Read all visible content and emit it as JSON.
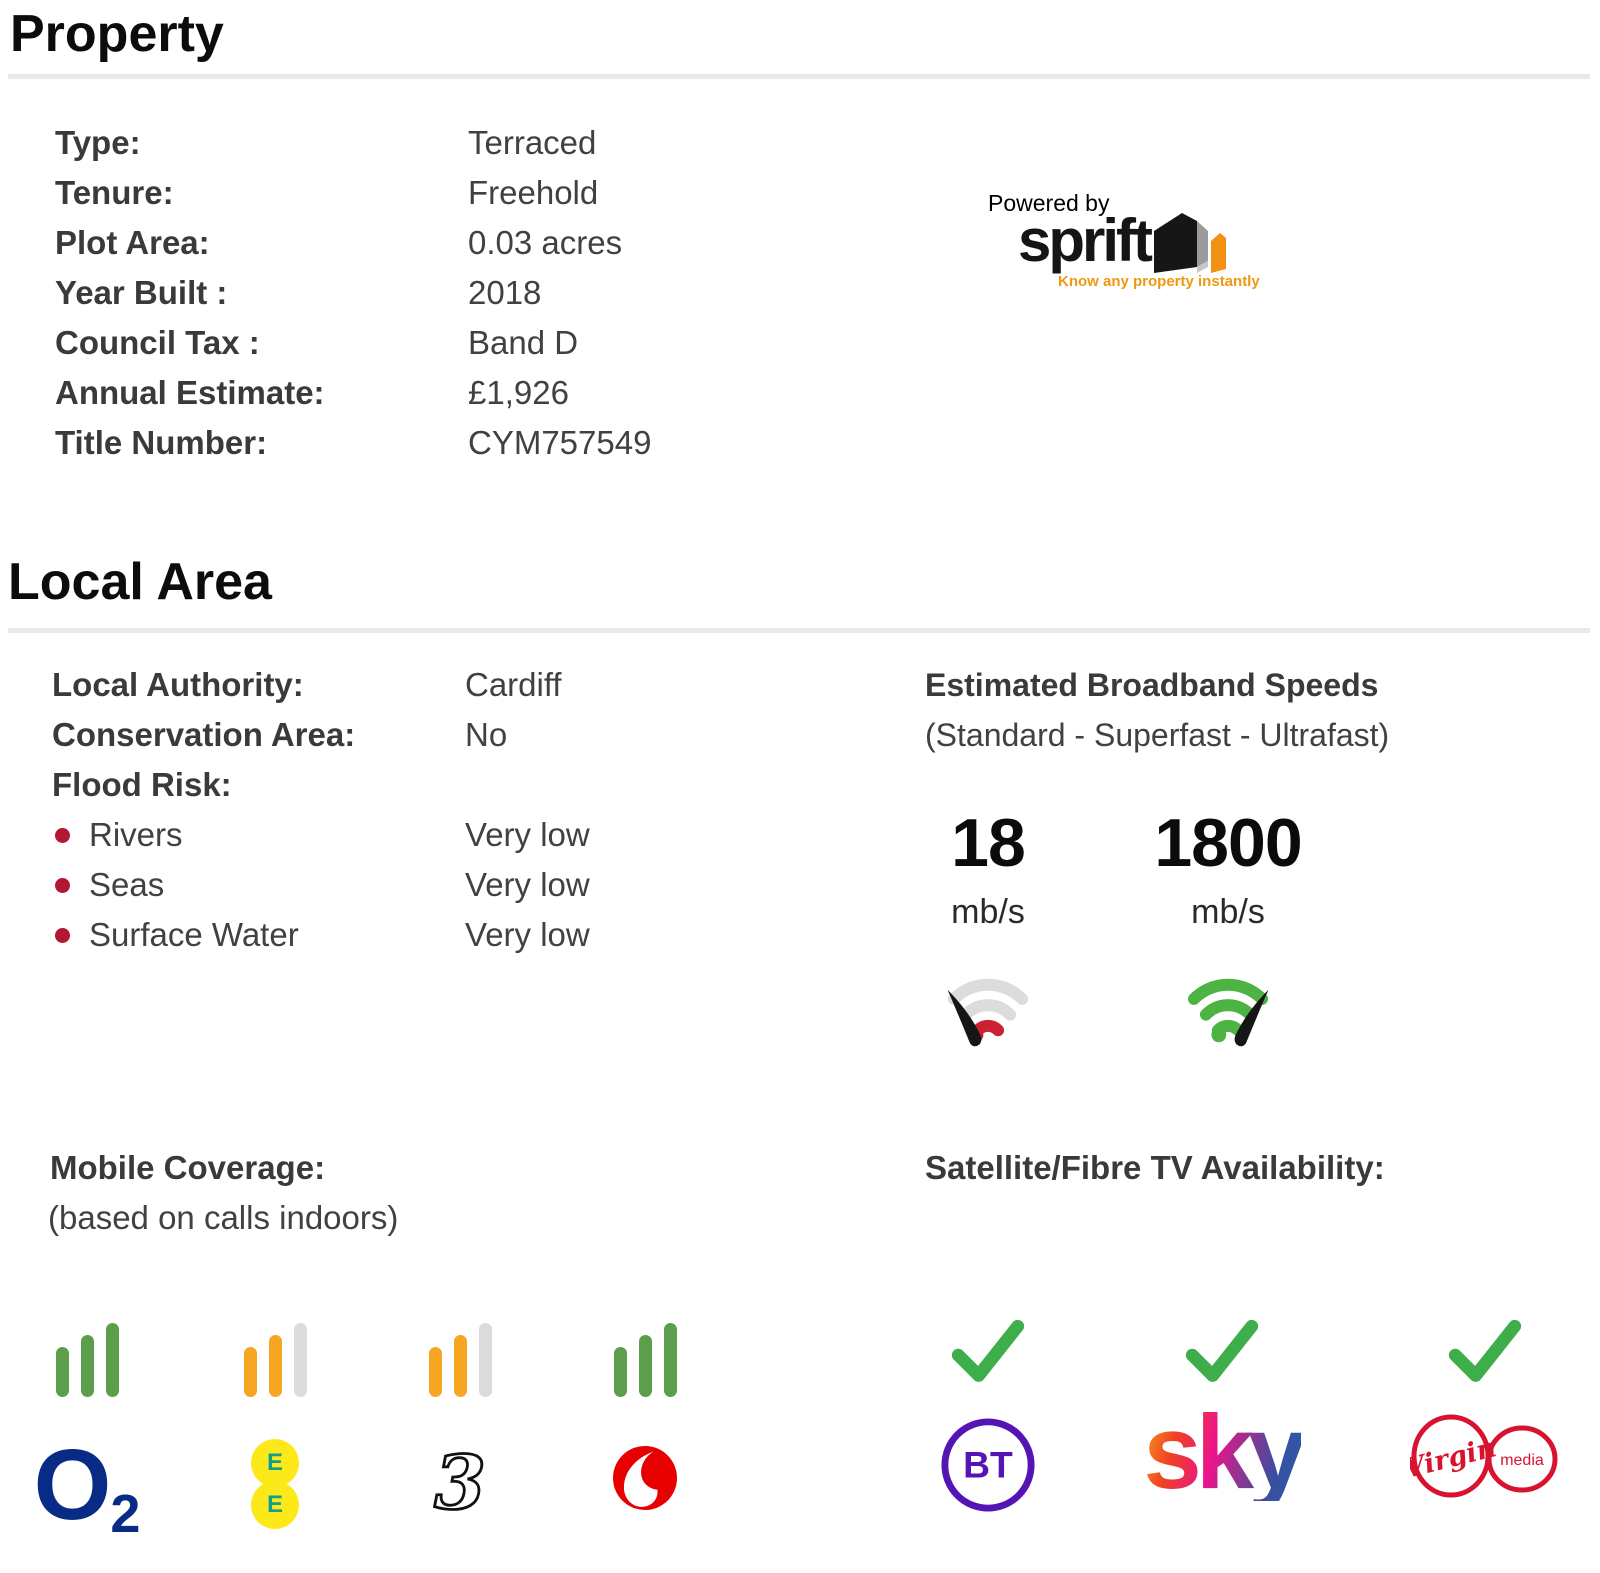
{
  "property_section": {
    "title": "Property",
    "rows": [
      {
        "label": "Type:",
        "value": "Terraced"
      },
      {
        "label": "Tenure:",
        "value": "Freehold"
      },
      {
        "label": "Plot Area:",
        "value": "0.03 acres"
      },
      {
        "label": "Year Built :",
        "value": "2018"
      },
      {
        "label": "Council Tax :",
        "value": "Band D"
      },
      {
        "label": "Annual Estimate:",
        "value": "£1,926"
      },
      {
        "label": "Title Number:",
        "value": "CYM757549"
      }
    ]
  },
  "sprift_logo": {
    "powered_by": "Powered by",
    "brand": "sprift",
    "tagline": "Know any property instantly",
    "orange": "#F29111"
  },
  "local_area_section": {
    "title": "Local Area",
    "rows": [
      {
        "label": "Local Authority:",
        "value": "Cardiff"
      },
      {
        "label": "Conservation Area:",
        "value": "No"
      },
      {
        "label": "Flood Risk:",
        "value": ""
      }
    ],
    "flood_risks": [
      {
        "label": "Rivers",
        "value": "Very low"
      },
      {
        "label": "Seas",
        "value": "Very low"
      },
      {
        "label": "Surface Water",
        "value": "Very low"
      }
    ],
    "bullet_color": "#B21733"
  },
  "broadband": {
    "title": "Estimated Broadband Speeds",
    "subtitle": "(Standard - Superfast - Ultrafast)",
    "speeds": [
      {
        "value": "18",
        "unit": "mb/s",
        "level": "standard",
        "icon": "wifi-gauge-red"
      },
      {
        "value": "1800",
        "unit": "mb/s",
        "level": "ultrafast",
        "icon": "wifi-gauge-green"
      }
    ]
  },
  "mobile_coverage": {
    "title": "Mobile Coverage:",
    "subtitle": "(based on calls indoors)",
    "operators": [
      {
        "name": "O2",
        "bars": [
          "green",
          "green",
          "green"
        ]
      },
      {
        "name": "EE",
        "bars": [
          "orange",
          "orange",
          "grey"
        ]
      },
      {
        "name": "Three",
        "bars": [
          "orange",
          "orange",
          "grey"
        ]
      },
      {
        "name": "Vodafone",
        "bars": [
          "green",
          "green",
          "green"
        ]
      }
    ],
    "logo_texts": {
      "o2_main": "O",
      "o2_sub": "2",
      "ee_letter": "E",
      "three": "3"
    }
  },
  "tv_availability": {
    "title": "Satellite/Fibre TV Availability:",
    "providers": [
      {
        "name": "BT",
        "available": true
      },
      {
        "name": "Sky",
        "available": true
      },
      {
        "name": "Virgin Media",
        "available": true
      }
    ],
    "logo_texts": {
      "bt": "BT",
      "sky": "sky",
      "virgin_script": "Virgin",
      "virgin_media": "media"
    }
  },
  "colors": {
    "bar_green": "#5C9E4B",
    "bar_orange": "#F6A623",
    "bar_grey": "#DBDBDB",
    "check_green": "#3DAE49",
    "divider_grey": "#E9E9E9",
    "o2_navy": "#082C85",
    "ee_yellow": "#FDE81A",
    "ee_teal": "#12A08E",
    "vodafone_red": "#E60000",
    "bt_purple": "#5514B4",
    "virgin_red": "#D8132F",
    "gauge_red": "#CB2233",
    "gauge_green": "#4DB343"
  }
}
